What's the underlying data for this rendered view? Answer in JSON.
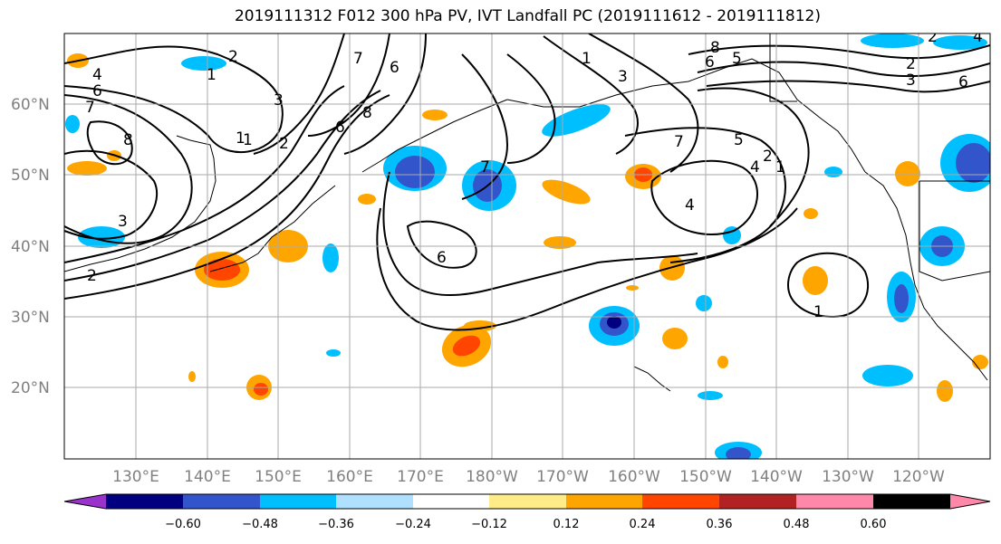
{
  "title": "2019111312 F012 300 hPa PV, IVT Landfall PC (2019111612 - 2019111812)",
  "lat_labels": [
    "60°N",
    "50°N",
    "40°N",
    "30°N",
    "20°N"
  ],
  "lon_labels": [
    "130°E",
    "140°E",
    "150°E",
    "160°E",
    "170°E",
    "180°W",
    "170°W",
    "160°W",
    "150°W",
    "140°W",
    "130°W",
    "120°W"
  ],
  "colorbar": {
    "colors": [
      "#9933cc",
      "#000080",
      "#3355cc",
      "#00bfff",
      "#b0e0ff",
      "#ffffff",
      "#ffeb88",
      "#ffa500",
      "#ff4500",
      "#b22222",
      "#ff88aa"
    ],
    "tick_labels": [
      "−0.60",
      "−0.48",
      "−0.36",
      "−0.24",
      "−0.12",
      "0.12",
      "0.24",
      "0.36",
      "0.48",
      "0.60"
    ]
  },
  "contour_labels": [
    "2",
    "1",
    "3",
    "4",
    "6",
    "7",
    "8",
    "2",
    "1",
    "3",
    "6",
    "7",
    "1",
    "2",
    "6",
    "7",
    "8",
    "6",
    "5",
    "3",
    "1",
    "4",
    "7",
    "8",
    "6",
    "4",
    "2",
    "1",
    "1",
    "2",
    "3",
    "4",
    "6",
    "5",
    "2"
  ],
  "colors": {
    "grid": "#aaaaaa",
    "coast": "#000000",
    "contour": "#000000"
  }
}
